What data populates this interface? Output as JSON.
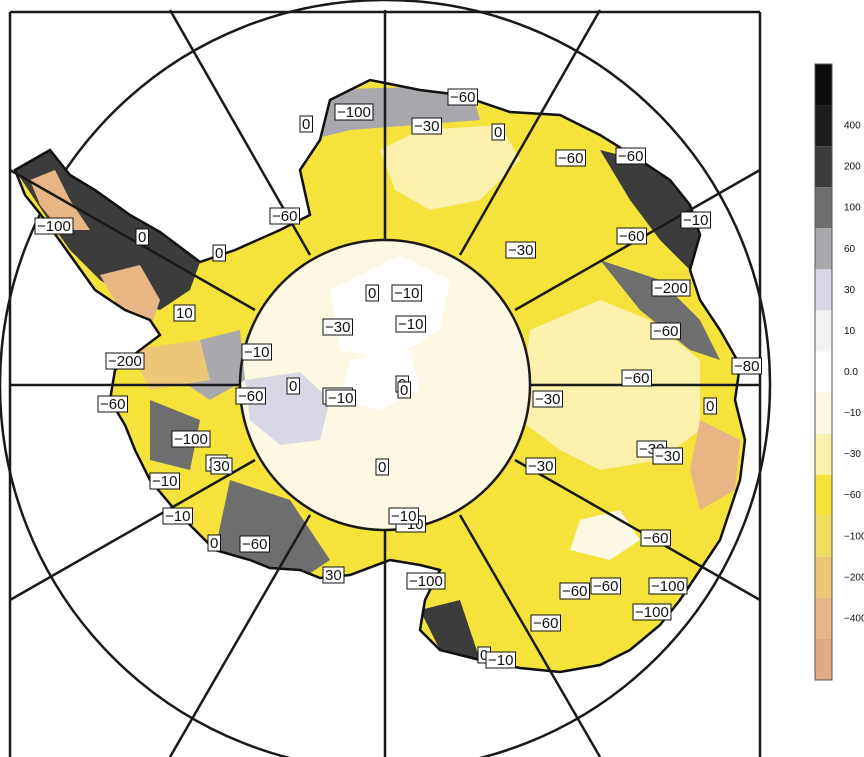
{
  "map": {
    "description_colors": {
      "border": "#1a1a1a",
      "background": "#ffffff"
    },
    "contour_labels": [
      "-60",
      "-100",
      "-30",
      "0",
      "-60",
      "-60",
      "-10",
      "-60",
      "-60",
      "-30",
      "-200",
      "-100",
      "-30",
      "-80",
      "-60",
      "-30",
      "-30",
      "-60",
      "-100",
      "-60",
      "-60",
      "-100",
      "-60",
      "10",
      "0",
      "-30",
      "-10",
      "-10",
      "0",
      "-10",
      "-10",
      "-60",
      "0",
      "-10",
      "0",
      "-10",
      "10",
      "-200",
      "-60",
      "-100",
      "-30",
      "-10",
      "-10",
      "0",
      "30",
      "0",
      "-60",
      "-60",
      "0",
      "-10",
      "0",
      "0",
      "-100",
      "0",
      "-10",
      "0",
      "30"
    ]
  },
  "legend": {
    "levels": [
      {
        "label": "400",
        "color": "#1c1c1c"
      },
      {
        "label": "200",
        "color": "#3c3c3c"
      },
      {
        "label": "100",
        "color": "#6e6e6e"
      },
      {
        "label": "60",
        "color": "#a8a8ad"
      },
      {
        "label": "30",
        "color": "#d7d8e3"
      },
      {
        "label": "10",
        "color": "#f3f3f5"
      },
      {
        "label": "0.0",
        "color": "#ffffff"
      },
      {
        "label": "-10",
        "color": "#fcf8e3"
      },
      {
        "label": "-30",
        "color": "#fbf1ad"
      },
      {
        "label": "-60",
        "color": "#f5e23a"
      },
      {
        "label": "-100",
        "color": "#f0dc62"
      },
      {
        "label": "-200",
        "color": "#ecc777"
      },
      {
        "label": "-400",
        "color": "#e8b685"
      }
    ],
    "extra_top_color": "#0d0d0d",
    "extra_bottom_color": "#e3aa82"
  }
}
